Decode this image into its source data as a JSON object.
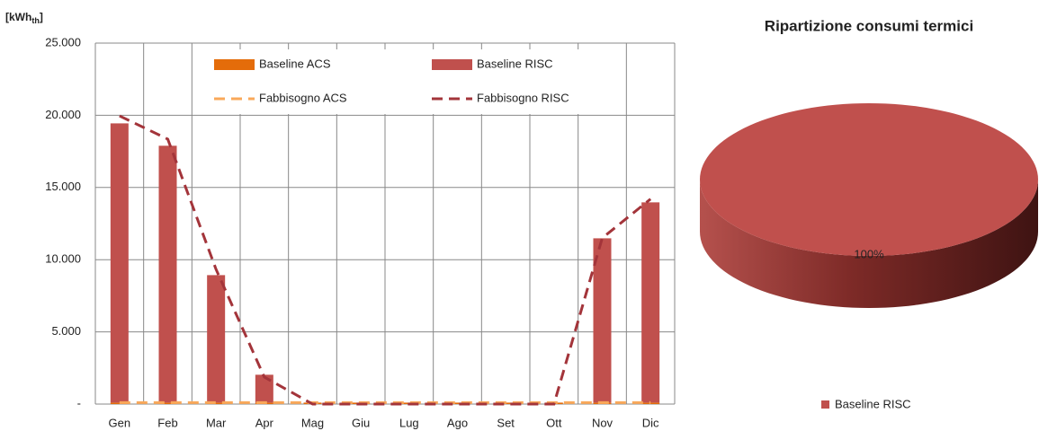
{
  "chart_data": [
    {
      "type": "bar-line",
      "ylabel": [
        "[kWh",
        "th",
        "]"
      ],
      "categories": [
        "Gen",
        "Feb",
        "Mar",
        "Apr",
        "Mag",
        "Giu",
        "Lug",
        "Ago",
        "Set",
        "Ott",
        "Nov",
        "Dic"
      ],
      "series": [
        {
          "name": "Baseline ACS",
          "kind": "bar",
          "color": "#e46c0a",
          "values": [
            100,
            100,
            100,
            100,
            100,
            100,
            100,
            100,
            100,
            100,
            100,
            100
          ]
        },
        {
          "name": "Baseline RISC",
          "kind": "bar",
          "color": "#c0504d",
          "values": [
            19340,
            17790,
            8830,
            1930,
            0,
            0,
            0,
            0,
            0,
            0,
            11380,
            13870
          ]
        },
        {
          "name": "Fabbisogno ACS",
          "kind": "line",
          "color": "#f9a85a",
          "values": [
            100,
            100,
            100,
            100,
            100,
            100,
            100,
            100,
            100,
            100,
            100,
            100
          ]
        },
        {
          "name": "Fabbisogno RISC",
          "kind": "line",
          "color": "#a3343a",
          "values": [
            19960,
            18350,
            9330,
            1870,
            0,
            0,
            0,
            0,
            0,
            0,
            11500,
            14200
          ]
        }
      ],
      "ylim": [
        0,
        25000
      ],
      "yticks": [
        {
          "value": 0,
          "label": "-"
        },
        {
          "value": 5000,
          "label": "5.000"
        },
        {
          "value": 10000,
          "label": "10.000"
        },
        {
          "value": 15000,
          "label": "15.000"
        },
        {
          "value": 20000,
          "label": "20.000"
        },
        {
          "value": 25000,
          "label": "25.000"
        }
      ],
      "grid": true
    },
    {
      "type": "pie",
      "title": "Ripartizione consumi termici",
      "categories": [
        "Baseline RISC"
      ],
      "values": [
        100
      ],
      "value_labels": [
        "100%"
      ],
      "colors": [
        "#c0504d"
      ]
    }
  ]
}
